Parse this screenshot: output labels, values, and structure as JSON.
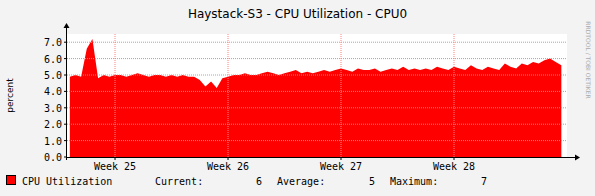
{
  "chart_data": {
    "type": "area",
    "title": "Haystack-S3 - CPU Utilization - CPU0",
    "y_label": "percent",
    "watermark": "RRDTOOL / TOBI OETIKER",
    "x": [
      25.1,
      25.15,
      25.2,
      25.25,
      25.3,
      25.35,
      25.4,
      25.45,
      25.5,
      25.55,
      25.6,
      25.65,
      25.7,
      25.75,
      25.8,
      25.85,
      25.9,
      25.95,
      26.0,
      26.05,
      26.1,
      26.15,
      26.2,
      26.25,
      26.3,
      26.35,
      26.4,
      26.45,
      26.5,
      26.55,
      26.6,
      26.65,
      26.7,
      26.75,
      26.8,
      26.85,
      26.9,
      26.95,
      27.0,
      27.05,
      27.1,
      27.15,
      27.2,
      27.25,
      27.3,
      27.35,
      27.4,
      27.45,
      27.5,
      27.55,
      27.6,
      27.65,
      27.7,
      27.75,
      27.8,
      27.85,
      27.9,
      27.95,
      28.0,
      28.05,
      28.1,
      28.15,
      28.2,
      28.25,
      28.3,
      28.35,
      28.4,
      28.45,
      28.5,
      28.55,
      28.6,
      28.65,
      28.7,
      28.75,
      28.8,
      28.85,
      28.9,
      28.95,
      29.0,
      29.05,
      29.1,
      29.15,
      29.2,
      29.25,
      29.3,
      29.35,
      29.4,
      29.45
    ],
    "series": [
      {
        "name": "CPU Utilization",
        "color": "#ff0000",
        "values": [
          4.9,
          5.0,
          4.9,
          6.6,
          7.2,
          4.8,
          5.0,
          4.9,
          5.0,
          5.0,
          4.9,
          5.0,
          5.1,
          5.0,
          4.9,
          5.0,
          5.0,
          4.9,
          5.0,
          4.9,
          5.0,
          4.9,
          4.9,
          4.7,
          4.3,
          4.6,
          4.2,
          4.8,
          4.9,
          5.0,
          5.0,
          5.1,
          5.0,
          5.0,
          5.1,
          5.2,
          5.1,
          5.0,
          5.1,
          5.2,
          5.3,
          5.1,
          5.2,
          5.1,
          5.2,
          5.3,
          5.2,
          5.3,
          5.4,
          5.3,
          5.2,
          5.4,
          5.3,
          5.3,
          5.4,
          5.2,
          5.3,
          5.4,
          5.3,
          5.5,
          5.3,
          5.4,
          5.3,
          5.4,
          5.3,
          5.5,
          5.4,
          5.3,
          5.5,
          5.4,
          5.3,
          5.6,
          5.4,
          5.3,
          5.5,
          5.4,
          5.3,
          5.7,
          5.5,
          5.4,
          5.7,
          5.6,
          5.8,
          5.7,
          5.9,
          6.0,
          5.8,
          5.6
        ]
      }
    ],
    "xlim": [
      25.075,
      29.5
    ],
    "xticks": [
      {
        "value": 25.5,
        "label": "Week 25"
      },
      {
        "value": 26.5,
        "label": "Week 26"
      },
      {
        "value": 27.5,
        "label": "Week 27"
      },
      {
        "value": 28.5,
        "label": "Week 28"
      }
    ],
    "ylim": [
      0,
      7.5
    ],
    "yticks": [
      {
        "value": 0,
        "label": "0.0"
      },
      {
        "value": 1,
        "label": "1.0"
      },
      {
        "value": 2,
        "label": "2.0"
      },
      {
        "value": 3,
        "label": "3.0"
      },
      {
        "value": 4,
        "label": "4.0"
      },
      {
        "value": 5,
        "label": "5.0"
      },
      {
        "value": 6,
        "label": "6.0"
      },
      {
        "value": 7,
        "label": "7.0"
      }
    ],
    "grid": true,
    "stats": [
      {
        "label": "Current:",
        "value": 6
      },
      {
        "label": "Average:",
        "value": 5
      },
      {
        "label": "Maximum:",
        "value": 7
      }
    ]
  }
}
